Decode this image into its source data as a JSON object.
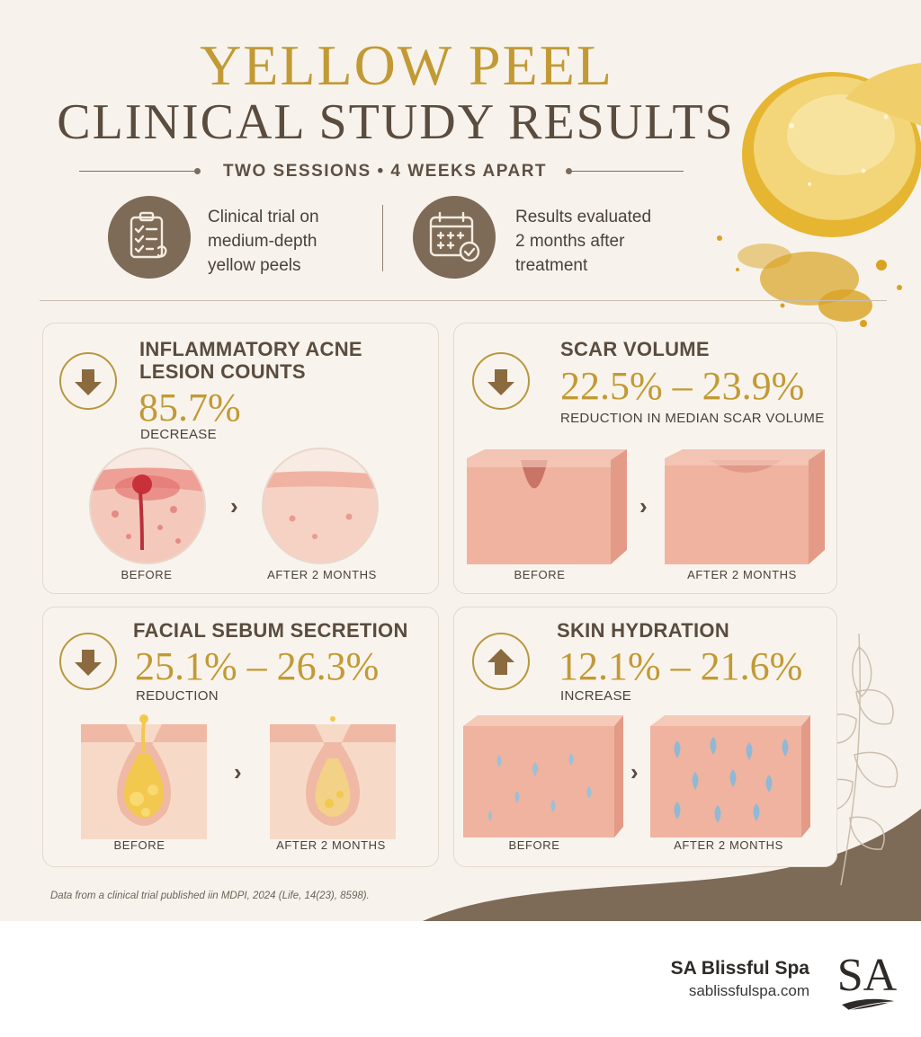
{
  "header": {
    "title_line1": "YELLOW PEEL",
    "title_line2": "CLINICAL STUDY RESULTS",
    "subtitle": "TWO SESSIONS • 4 WEEKS APART"
  },
  "features": [
    {
      "icon": "clipboard-checklist-icon",
      "text_lines": [
        "Clinical trial on",
        "medium-depth",
        "yellow peels"
      ]
    },
    {
      "icon": "calendar-check-icon",
      "text_lines": [
        "Results evaluated",
        "2 months after",
        "treatment"
      ]
    }
  ],
  "metrics": [
    {
      "title_lines": [
        "INFLAMMATORY ACNE",
        "LESION COUNTS"
      ],
      "direction": "down",
      "value": "85.7%",
      "sub": "DECREASE",
      "before_label": "BEFORE",
      "after_label": "AFTER 2 MONTHS"
    },
    {
      "title_lines": [
        "SCAR VOLUME"
      ],
      "direction": "down",
      "value": "22.5% – 23.9%",
      "sub": "REDUCTION IN MEDIAN SCAR VOLUME",
      "before_label": "BEFORE",
      "after_label": "AFTER 2 MONTHS"
    },
    {
      "title_lines": [
        "FACIAL SEBUM SECRETION"
      ],
      "direction": "down",
      "value": "25.1% – 26.3%",
      "sub": "REDUCTION",
      "before_label": "BEFORE",
      "after_label": "AFTER 2 MONTHS"
    },
    {
      "title_lines": [
        "SKIN HYDRATION"
      ],
      "direction": "up",
      "value": "12.1% – 21.6%",
      "sub": "INCREASE",
      "before_label": "BEFORE",
      "after_label": "AFTER 2 MONTHS"
    }
  ],
  "source_note": "Data from a clinical trial published iin MDPI, 2024 (Life, 14(23), 8598).",
  "brand": {
    "name": "SA Blissful Spa",
    "url": "sablissfulspa.com",
    "logo_text": "SA"
  },
  "colors": {
    "gold": "#c29a35",
    "brown": "#7d6a57",
    "dark_text": "#5a4c3f",
    "background": "#f7f3ec",
    "skin": "#efb3a0"
  }
}
